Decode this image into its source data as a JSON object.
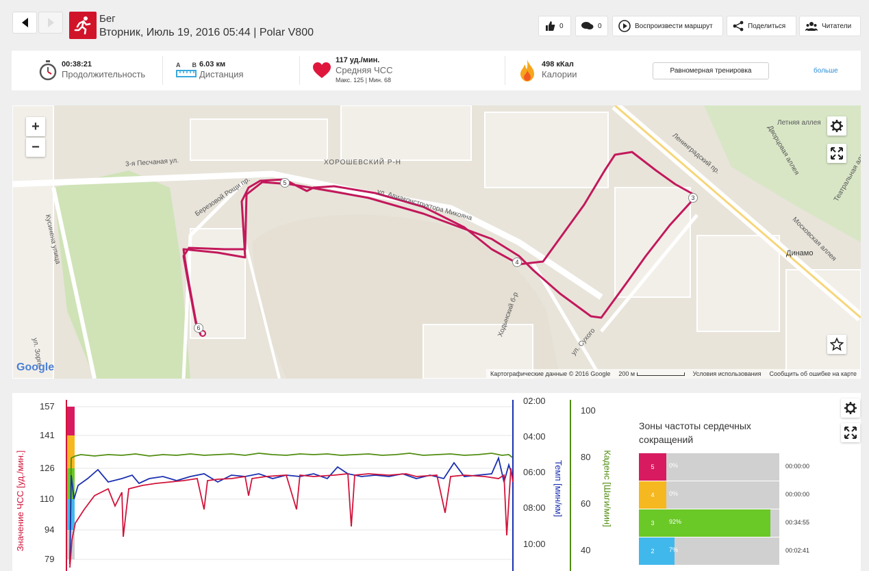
{
  "header": {
    "title": "Бег",
    "subtitle": "Вторник, Июль 19, 2016 05:44 | Polar V800",
    "likes": "0",
    "comments": "0",
    "replay_label": "Воспроизвести маршрут",
    "share_label": "Поделиться",
    "readers_label": "Читатели"
  },
  "summary": {
    "duration_value": "00:38:21",
    "duration_label": "Продолжительность",
    "distance_value": "6.03 км",
    "distance_label": "Дистанция",
    "distance_a": "A",
    "distance_b": "B",
    "hr_value": "117 уд./мин.",
    "hr_label": "Средняя ЧСС",
    "hr_sub": "Макс. 125  |  Мин. 68",
    "calories_value": "498 кКал",
    "calories_label": "Калории",
    "training_button": "Равномерная тренировка",
    "more_link": "больше"
  },
  "map": {
    "labels": [
      "3-я Песчаная ул.",
      "ХОРОШЕВСКИЙ Р-Н",
      "ул. Авиаконструктора Микояна",
      "Березовой Рощи пр.",
      "Кусинена улица",
      "Ленинградский пр.",
      "Летняя аллея",
      "Дворцовая аллея",
      "Театральная аллея",
      "Московская аллея",
      "Динамо",
      "Ходынский б-р",
      "ул. Сухого",
      "ул. Зорге"
    ],
    "markers": [
      "3",
      "4",
      "5",
      "6"
    ],
    "footer_data": "Картографические данные © 2016 Google",
    "footer_scale": "200 м",
    "footer_terms": "Условия использования",
    "footer_report": "Сообщить об ошибке на карте",
    "google": "Google",
    "zoom_in": "+",
    "zoom_out": "−"
  },
  "chart": {
    "hr_axis_label": "Значение ЧСС [уд./мин.]",
    "pace_axis_label": "Темп [мин/км]",
    "cadence_axis_label": "Каденс [Шаги/мин]",
    "hr_ticks": [
      "157",
      "141",
      "126",
      "110",
      "94",
      "79"
    ],
    "pace_ticks": [
      "02:00",
      "04:00",
      "06:00",
      "08:00",
      "10:00"
    ],
    "cadence_ticks": [
      "100",
      "80",
      "60",
      "40"
    ]
  },
  "zones": {
    "title": "Зоны частоты сердечных сокращений",
    "rows": [
      {
        "zone": "5",
        "pct": "0%",
        "time": "00:00:00",
        "color": "#d81b60",
        "fraction": 0.0
      },
      {
        "zone": "4",
        "pct": "0%",
        "time": "00:00:00",
        "color": "#f5b820",
        "fraction": 0.0
      },
      {
        "zone": "3",
        "pct": "92%",
        "time": "00:34:55",
        "color": "#6ac827",
        "fraction": 0.92
      },
      {
        "zone": "2",
        "pct": "7%",
        "time": "00:02:41",
        "color": "#41b8ec",
        "fraction": 0.07
      }
    ]
  },
  "colors": {
    "brand": "#d1132a",
    "hr_line": "#d1133a",
    "pace_line": "#1a2fb0",
    "cadence_line": "#4f8c0e",
    "route": "#c2185b"
  }
}
